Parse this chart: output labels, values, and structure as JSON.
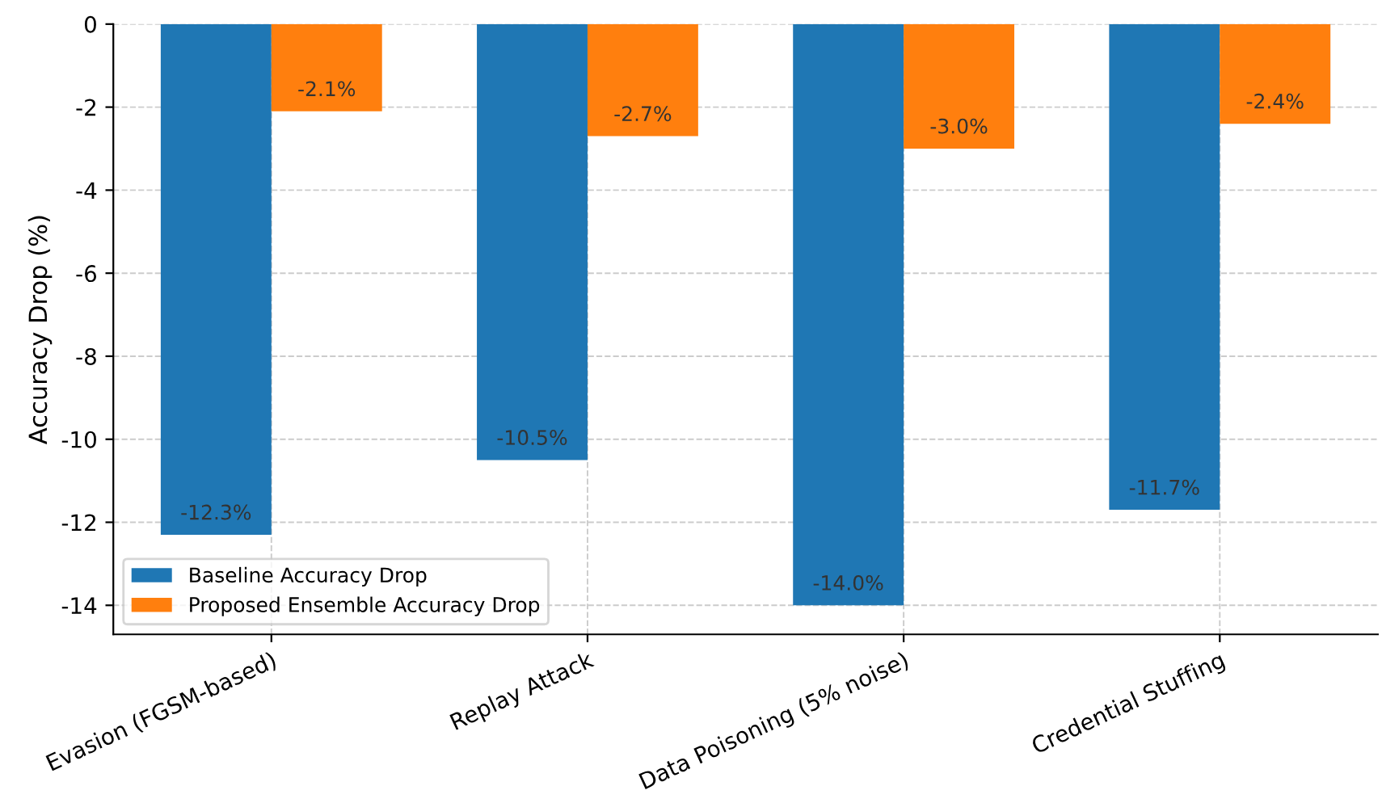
{
  "chart_data": {
    "type": "bar",
    "ylabel": "Accuracy Drop (%)",
    "categories": [
      "Evasion (FGSM-based)",
      "Replay Attack",
      "Data Poisoning (5% noise)",
      "Credential Stuffing"
    ],
    "series": [
      {
        "name": "Baseline Accuracy Drop",
        "color": "#1f77b4",
        "values": [
          -12.3,
          -10.5,
          -14.0,
          -11.7
        ],
        "value_labels": [
          "-12.3%",
          "-10.5%",
          "-14.0%",
          "-11.7%"
        ]
      },
      {
        "name": "Proposed Ensemble Accuracy Drop",
        "color": "#ff7f0e",
        "values": [
          -2.1,
          -2.7,
          -3.0,
          -2.4
        ],
        "value_labels": [
          "-2.1%",
          "-2.7%",
          "-3.0%",
          "-2.4%"
        ]
      }
    ],
    "ylim": [
      -14.7,
      0
    ],
    "yticks": [
      -14,
      -12,
      -10,
      -8,
      -6,
      -4,
      -2,
      0
    ],
    "grid": true,
    "legend": "bottom left"
  }
}
